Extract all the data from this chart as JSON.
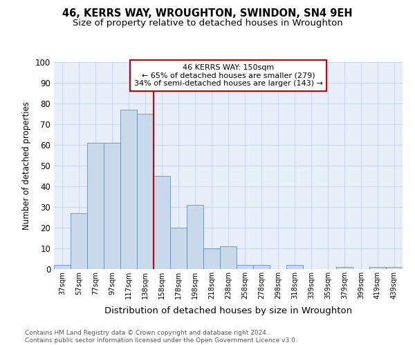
{
  "title1": "46, KERRS WAY, WROUGHTON, SWINDON, SN4 9EH",
  "title2": "Size of property relative to detached houses in Wroughton",
  "xlabel": "Distribution of detached houses by size in Wroughton",
  "ylabel": "Number of detached properties",
  "footnote": "Contains HM Land Registry data © Crown copyright and database right 2024.\nContains public sector information licensed under the Open Government Licence v3.0.",
  "categories": [
    "37sqm",
    "57sqm",
    "77sqm",
    "97sqm",
    "117sqm",
    "138sqm",
    "158sqm",
    "178sqm",
    "198sqm",
    "218sqm",
    "238sqm",
    "258sqm",
    "278sqm",
    "298sqm",
    "318sqm",
    "339sqm",
    "359sqm",
    "379sqm",
    "399sqm",
    "419sqm",
    "439sqm"
  ],
  "values": [
    2,
    27,
    61,
    61,
    77,
    75,
    45,
    20,
    31,
    10,
    11,
    2,
    2,
    0,
    2,
    0,
    0,
    1,
    0,
    1,
    1
  ],
  "bar_color": "#c9d9ec",
  "bar_edge_color": "#6090bc",
  "vline_x": 6.0,
  "vline_color": "#cc0000",
  "annotation_text": "46 KERRS WAY: 150sqm\n← 65% of detached houses are smaller (279)\n34% of semi-detached houses are larger (143) →",
  "annotation_box_color": "#ffffff",
  "annotation_box_edge": "#cc0000",
  "ylim": [
    0,
    100
  ],
  "yticks": [
    0,
    10,
    20,
    30,
    40,
    50,
    60,
    70,
    80,
    90,
    100
  ],
  "grid_color": "#c8d4e8",
  "background_color": "#e8eef8",
  "title1_fontsize": 10.5,
  "title2_fontsize": 9.5,
  "footnote_fontsize": 6.5
}
